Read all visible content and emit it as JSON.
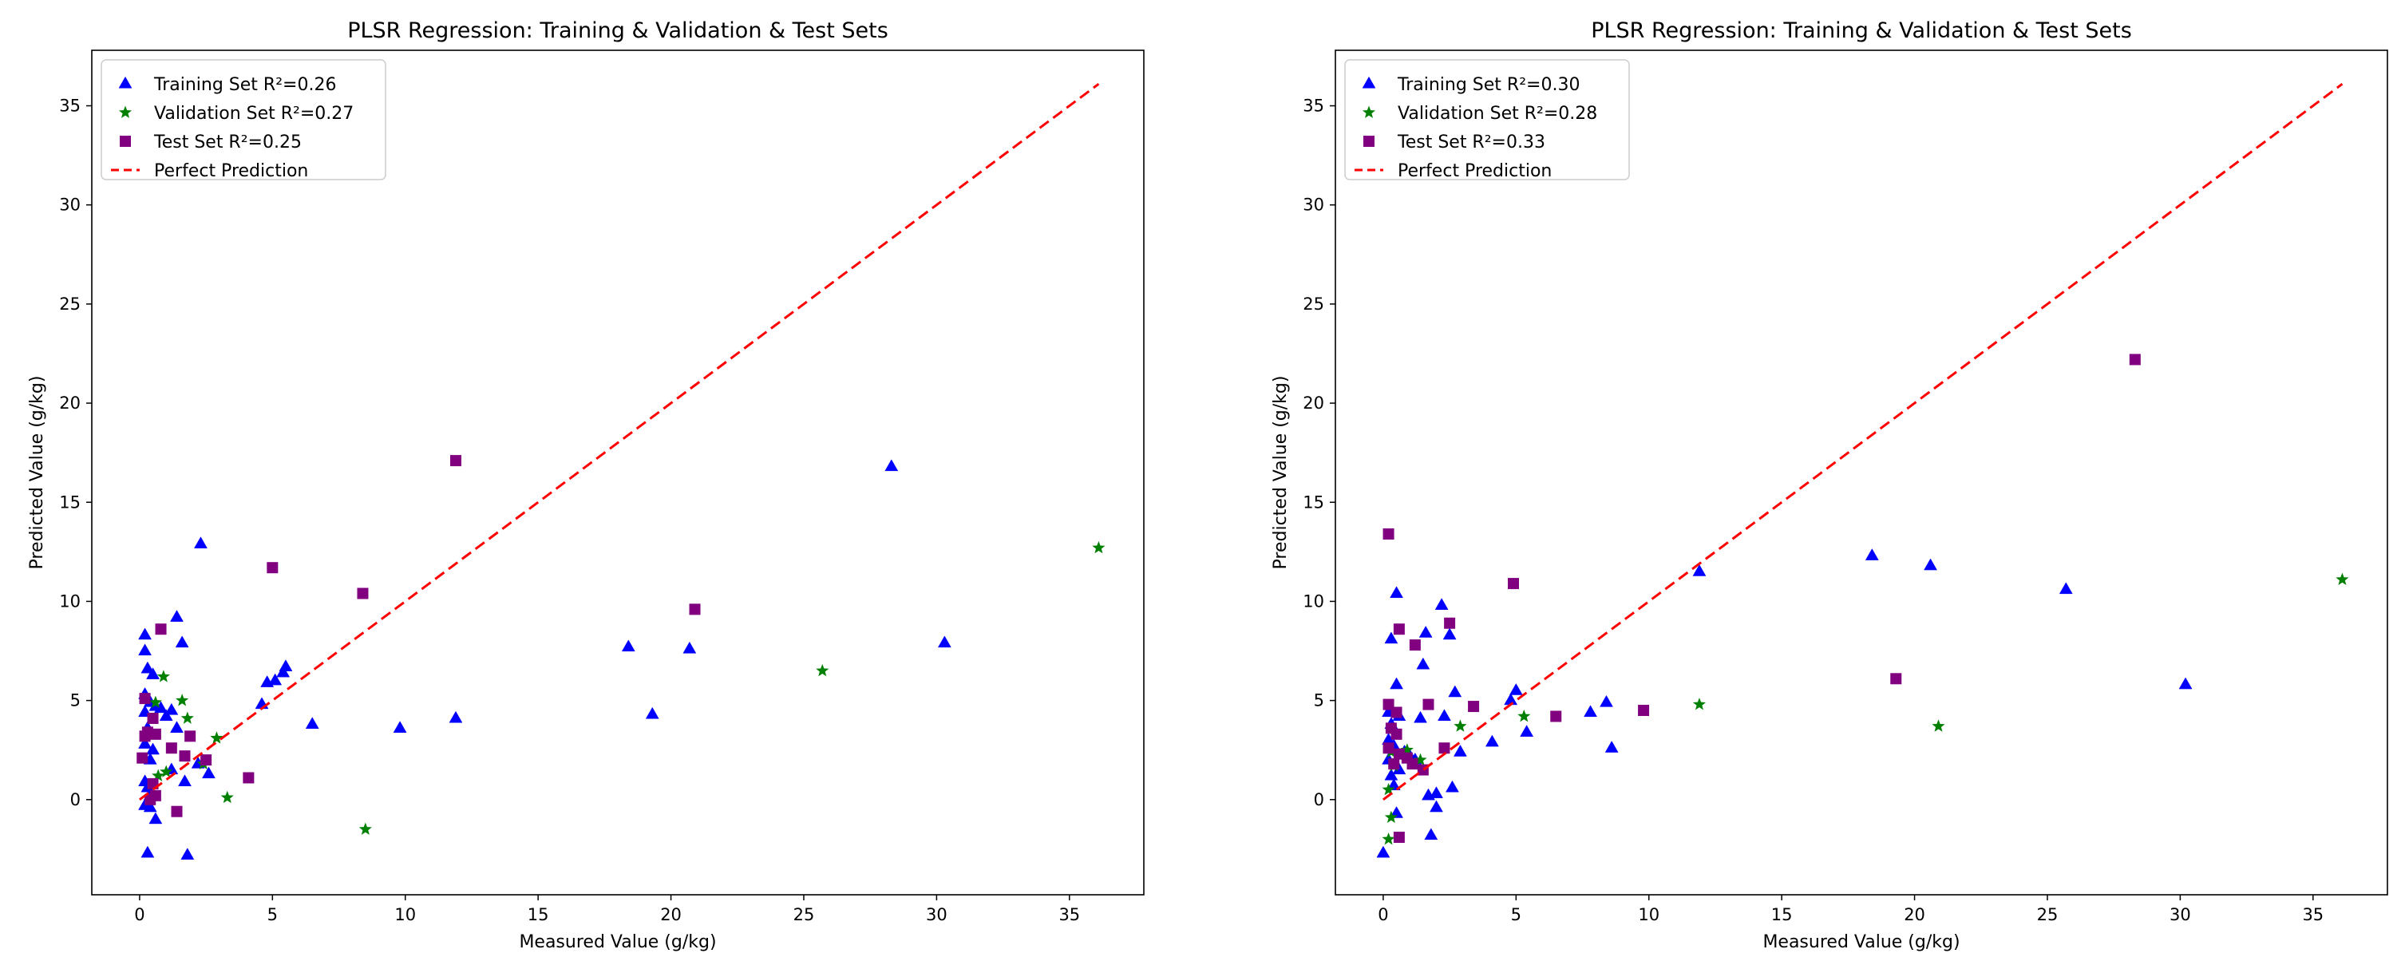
{
  "chart_data": [
    {
      "type": "scatter",
      "title": "PLSR Regression: Training & Validation & Test Sets",
      "xlabel": "Measured Value (g/kg)",
      "ylabel": "Predicted Value (g/kg)",
      "xlim": [
        -1.8,
        37.8
      ],
      "ylim": [
        -4.8,
        37.8
      ],
      "xticks": [
        0,
        5,
        10,
        15,
        20,
        25,
        30,
        35
      ],
      "yticks": [
        0,
        5,
        10,
        15,
        20,
        25,
        30,
        35
      ],
      "grid": false,
      "legend_position": "top-left",
      "series": [
        {
          "name": "Training Set R²=0.26",
          "marker": "triangle",
          "color": "#0000ff",
          "points": [
            [
              0.2,
              8.3
            ],
            [
              0.2,
              7.5
            ],
            [
              0.3,
              6.6
            ],
            [
              0.5,
              6.3
            ],
            [
              0.2,
              5.3
            ],
            [
              0.4,
              4.9
            ],
            [
              0.6,
              4.7
            ],
            [
              0.2,
              4.4
            ],
            [
              0.3,
              3.6
            ],
            [
              0.2,
              2.8
            ],
            [
              0.5,
              2.5
            ],
            [
              0.4,
              2.0
            ],
            [
              0.2,
              0.9
            ],
            [
              0.3,
              0.6
            ],
            [
              0.4,
              0.2
            ],
            [
              0.2,
              -0.3
            ],
            [
              0.4,
              -0.4
            ],
            [
              0.6,
              -1.0
            ],
            [
              0.3,
              -2.7
            ],
            [
              0.8,
              4.6
            ],
            [
              1.0,
              4.2
            ],
            [
              1.2,
              4.5
            ],
            [
              1.4,
              9.2
            ],
            [
              1.6,
              7.9
            ],
            [
              1.4,
              3.6
            ],
            [
              1.2,
              1.5
            ],
            [
              1.7,
              0.9
            ],
            [
              1.8,
              -2.8
            ],
            [
              2.3,
              12.9
            ],
            [
              2.2,
              1.8
            ],
            [
              2.6,
              1.3
            ],
            [
              4.6,
              4.8
            ],
            [
              4.8,
              5.9
            ],
            [
              5.1,
              6.0
            ],
            [
              5.4,
              6.4
            ],
            [
              5.5,
              6.7
            ],
            [
              6.5,
              3.8
            ],
            [
              9.8,
              3.6
            ],
            [
              11.9,
              4.1
            ],
            [
              18.4,
              7.7
            ],
            [
              19.3,
              4.3
            ],
            [
              20.7,
              7.6
            ],
            [
              28.3,
              16.8
            ],
            [
              30.3,
              7.9
            ]
          ]
        },
        {
          "name": "Validation Set R²=0.27",
          "marker": "star",
          "color": "#008000",
          "points": [
            [
              0.6,
              4.9
            ],
            [
              0.9,
              6.2
            ],
            [
              1.6,
              5.0
            ],
            [
              1.8,
              4.1
            ],
            [
              0.7,
              1.2
            ],
            [
              1.0,
              1.4
            ],
            [
              2.9,
              3.1
            ],
            [
              2.4,
              1.8
            ],
            [
              3.3,
              0.1
            ],
            [
              8.5,
              -1.5
            ],
            [
              25.7,
              6.5
            ],
            [
              36.1,
              12.7
            ]
          ]
        },
        {
          "name": "Test Set R²=0.25",
          "marker": "square",
          "color": "#800080",
          "points": [
            [
              0.8,
              8.6
            ],
            [
              0.2,
              5.1
            ],
            [
              0.5,
              4.1
            ],
            [
              0.3,
              3.4
            ],
            [
              0.6,
              3.3
            ],
            [
              0.2,
              3.2
            ],
            [
              0.1,
              2.1
            ],
            [
              0.5,
              0.8
            ],
            [
              0.6,
              0.2
            ],
            [
              0.4,
              0.0
            ],
            [
              1.2,
              2.6
            ],
            [
              1.7,
              2.2
            ],
            [
              1.9,
              3.2
            ],
            [
              2.5,
              2.0
            ],
            [
              1.4,
              -0.6
            ],
            [
              4.1,
              1.1
            ],
            [
              5.0,
              11.7
            ],
            [
              8.4,
              10.4
            ],
            [
              11.9,
              17.1
            ],
            [
              20.9,
              9.6
            ]
          ]
        },
        {
          "name": "Perfect Prediction",
          "marker": "dashed-line",
          "color": "#ff0000",
          "line": [
            [
              0.0,
              0.0
            ],
            [
              36.1,
              36.1
            ]
          ]
        }
      ]
    },
    {
      "type": "scatter",
      "title": "PLSR Regression: Training & Validation & Test Sets",
      "xlabel": "Measured Value (g/kg)",
      "ylabel": "Predicted Value (g/kg)",
      "xlim": [
        -1.8,
        37.8
      ],
      "ylim": [
        -4.8,
        37.8
      ],
      "xticks": [
        0,
        5,
        10,
        15,
        20,
        25,
        30,
        35
      ],
      "yticks": [
        0,
        5,
        10,
        15,
        20,
        25,
        30,
        35
      ],
      "grid": false,
      "legend_position": "top-left",
      "series": [
        {
          "name": "Training Set R²=0.30",
          "marker": "triangle",
          "color": "#0000ff",
          "points": [
            [
              0.5,
              10.4
            ],
            [
              0.3,
              8.1
            ],
            [
              0.5,
              5.8
            ],
            [
              0.2,
              4.4
            ],
            [
              0.3,
              3.8
            ],
            [
              0.6,
              4.2
            ],
            [
              0.2,
              3.0
            ],
            [
              0.4,
              2.7
            ],
            [
              0.2,
              2.0
            ],
            [
              0.3,
              1.2
            ],
            [
              0.6,
              1.5
            ],
            [
              0.4,
              0.7
            ],
            [
              0.5,
              -0.7
            ],
            [
              0.0,
              -2.7
            ],
            [
              0.8,
              2.4
            ],
            [
              1.0,
              2.2
            ],
            [
              1.2,
              2.0
            ],
            [
              1.4,
              4.1
            ],
            [
              1.5,
              6.8
            ],
            [
              1.6,
              8.4
            ],
            [
              2.2,
              9.8
            ],
            [
              2.5,
              8.3
            ],
            [
              1.7,
              0.2
            ],
            [
              1.8,
              -1.8
            ],
            [
              2.0,
              -0.4
            ],
            [
              2.0,
              0.3
            ],
            [
              2.3,
              4.2
            ],
            [
              2.6,
              0.6
            ],
            [
              2.7,
              5.4
            ],
            [
              2.9,
              2.4
            ],
            [
              4.1,
              2.9
            ],
            [
              4.8,
              5.0
            ],
            [
              5.0,
              5.5
            ],
            [
              5.4,
              3.4
            ],
            [
              7.8,
              4.4
            ],
            [
              8.4,
              4.9
            ],
            [
              8.6,
              2.6
            ],
            [
              11.9,
              11.5
            ],
            [
              18.4,
              12.3
            ],
            [
              20.6,
              11.8
            ],
            [
              25.7,
              10.6
            ],
            [
              30.2,
              5.8
            ]
          ]
        },
        {
          "name": "Validation Set R²=0.28",
          "marker": "star",
          "color": "#008000",
          "points": [
            [
              0.3,
              2.4
            ],
            [
              0.4,
              1.7
            ],
            [
              0.2,
              0.5
            ],
            [
              0.3,
              -0.9
            ],
            [
              0.2,
              -2.0
            ],
            [
              0.9,
              2.5
            ],
            [
              1.4,
              2.0
            ],
            [
              2.9,
              3.7
            ],
            [
              5.3,
              4.2
            ],
            [
              11.9,
              4.8
            ],
            [
              20.9,
              3.7
            ],
            [
              36.1,
              11.1
            ]
          ]
        },
        {
          "name": "Test Set R²=0.33",
          "marker": "square",
          "color": "#800080",
          "points": [
            [
              0.2,
              13.4
            ],
            [
              0.6,
              8.6
            ],
            [
              2.5,
              8.9
            ],
            [
              1.2,
              7.8
            ],
            [
              4.9,
              10.9
            ],
            [
              0.2,
              4.8
            ],
            [
              0.5,
              4.4
            ],
            [
              0.3,
              3.6
            ],
            [
              0.5,
              3.3
            ],
            [
              0.2,
              2.6
            ],
            [
              0.4,
              1.8
            ],
            [
              0.6,
              2.3
            ],
            [
              0.9,
              2.1
            ],
            [
              1.1,
              1.8
            ],
            [
              1.5,
              1.5
            ],
            [
              0.6,
              -1.9
            ],
            [
              1.7,
              4.8
            ],
            [
              2.3,
              2.6
            ],
            [
              3.4,
              4.7
            ],
            [
              6.5,
              4.2
            ],
            [
              9.8,
              4.5
            ],
            [
              19.3,
              6.1
            ],
            [
              28.3,
              22.2
            ]
          ]
        },
        {
          "name": "Perfect Prediction",
          "marker": "dashed-line",
          "color": "#ff0000",
          "line": [
            [
              0.0,
              0.0
            ],
            [
              36.1,
              36.1
            ]
          ]
        }
      ]
    }
  ]
}
